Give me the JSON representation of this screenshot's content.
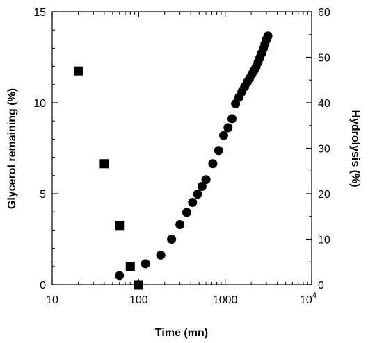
{
  "chart_data": {
    "type": "scatter",
    "xlabel": "Time (mn)",
    "ylabel_left": "Glycerol remaining (%)",
    "ylabel_right": "Hydrolysis (%)",
    "xscale": "log",
    "xlim": [
      10,
      10000
    ],
    "ylim_left": [
      0,
      15
    ],
    "ylim_right": [
      0,
      60
    ],
    "x_ticks": [
      {
        "value": 10,
        "label": "10"
      },
      {
        "value": 100,
        "label": "100"
      },
      {
        "value": 1000,
        "label": "1000"
      },
      {
        "value": 10000,
        "label": "10",
        "exp": "4"
      }
    ],
    "y_left_ticks": [
      {
        "value": 0,
        "label": "0"
      },
      {
        "value": 5,
        "label": "5"
      },
      {
        "value": 10,
        "label": "10"
      },
      {
        "value": 15,
        "label": "15"
      }
    ],
    "y_right_ticks": [
      {
        "value": 0,
        "label": "0"
      },
      {
        "value": 10,
        "label": "10"
      },
      {
        "value": 20,
        "label": "20"
      },
      {
        "value": 30,
        "label": "30"
      },
      {
        "value": 40,
        "label": "40"
      },
      {
        "value": 50,
        "label": "50"
      },
      {
        "value": 60,
        "label": "60"
      }
    ],
    "grid": false,
    "series": [
      {
        "marker": "square",
        "axis": "left",
        "color": "#000000",
        "points": [
          {
            "x": 20,
            "y": 11.75
          },
          {
            "x": 40,
            "y": 6.65
          },
          {
            "x": 60,
            "y": 3.25
          },
          {
            "x": 80,
            "y": 1.0
          },
          {
            "x": 100,
            "y": 0.0
          }
        ]
      },
      {
        "marker": "circle",
        "axis": "right",
        "color": "#000000",
        "points": [
          {
            "x": 60,
            "y": 2.0
          },
          {
            "x": 120,
            "y": 4.6
          },
          {
            "x": 180,
            "y": 6.5
          },
          {
            "x": 240,
            "y": 10.0
          },
          {
            "x": 300,
            "y": 13.2
          },
          {
            "x": 360,
            "y": 15.9
          },
          {
            "x": 420,
            "y": 18.1
          },
          {
            "x": 480,
            "y": 19.9
          },
          {
            "x": 540,
            "y": 21.6
          },
          {
            "x": 600,
            "y": 23.1
          },
          {
            "x": 720,
            "y": 26.6
          },
          {
            "x": 840,
            "y": 29.5
          },
          {
            "x": 960,
            "y": 32.8
          },
          {
            "x": 1080,
            "y": 34.5
          },
          {
            "x": 1200,
            "y": 36.5
          },
          {
            "x": 1320,
            "y": 39.8
          },
          {
            "x": 1440,
            "y": 41.2
          },
          {
            "x": 1560,
            "y": 42.4
          },
          {
            "x": 1680,
            "y": 43.5
          },
          {
            "x": 1800,
            "y": 44.5
          },
          {
            "x": 1920,
            "y": 45.4
          },
          {
            "x": 2040,
            "y": 46.3
          },
          {
            "x": 2160,
            "y": 47.1
          },
          {
            "x": 2280,
            "y": 47.9
          },
          {
            "x": 2400,
            "y": 48.9
          },
          {
            "x": 2520,
            "y": 49.9
          },
          {
            "x": 2640,
            "y": 50.9
          },
          {
            "x": 2760,
            "y": 51.9
          },
          {
            "x": 2880,
            "y": 52.9
          },
          {
            "x": 3000,
            "y": 53.9
          },
          {
            "x": 3120,
            "y": 54.7
          }
        ]
      }
    ]
  }
}
